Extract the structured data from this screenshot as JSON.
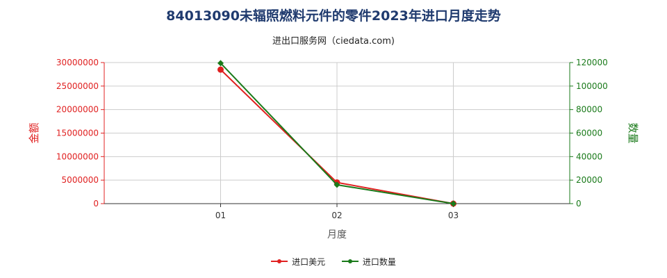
{
  "chart_data": {
    "type": "line",
    "title": "84013090未辐照燃料元件的零件2023年进口月度走势",
    "subtitle": "进出口服务网（ciedata.com)",
    "xlabel": "月度",
    "categories": [
      "01",
      "02",
      "03"
    ],
    "y_left": {
      "label": "金额",
      "range": [
        0,
        30000000
      ],
      "ticks": [
        "0",
        "5000000",
        "10000000",
        "15000000",
        "20000000",
        "25000000",
        "30000000"
      ],
      "color": "#e02020"
    },
    "y_right": {
      "label": "数量",
      "range": [
        0,
        120000
      ],
      "ticks": [
        "0",
        "20000",
        "40000",
        "60000",
        "80000",
        "100000",
        "120000"
      ],
      "color": "#1a7a1a"
    },
    "series": [
      {
        "name": "进口美元",
        "axis": "left",
        "color": "#e02020",
        "values": [
          28500000,
          4500000,
          0
        ]
      },
      {
        "name": "进口数量",
        "axis": "right",
        "color": "#1a7a1a",
        "values": [
          119500,
          16000,
          0
        ]
      }
    ],
    "grid": true,
    "legend_position": "bottom"
  }
}
